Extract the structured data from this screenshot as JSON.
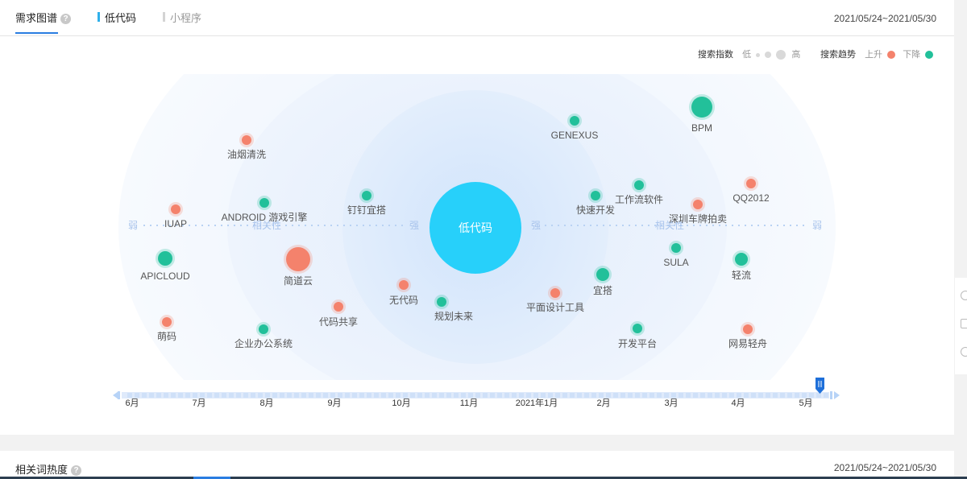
{
  "tabs": {
    "main": "需求图谱",
    "help": "?",
    "sub1": "低代码",
    "sub2": "小程序"
  },
  "date_range": "2021/05/24~2021/05/30",
  "legend": {
    "index_label": "搜索指数",
    "low": "低",
    "high": "高",
    "trend_label": "搜索趋势",
    "up": "上升",
    "down": "下降",
    "up_color": "#f4826c",
    "down_color": "#22c09a"
  },
  "graph": {
    "center": "低代码",
    "center_color": "#27d0fa",
    "axis_labels": {
      "weak": "弱",
      "strong": "强",
      "relevance": "相关性"
    },
    "terms": [
      {
        "label": "油烟清洗",
        "trend": "up"
      },
      {
        "label": "ANDROID 游戏引擎",
        "trend": "down"
      },
      {
        "label": "IUAP",
        "trend": "up"
      },
      {
        "label": "钉钉宜搭",
        "trend": "down"
      },
      {
        "label": "APICLOUD",
        "trend": "down"
      },
      {
        "label": "简道云",
        "trend": "up"
      },
      {
        "label": "无代码",
        "trend": "up"
      },
      {
        "label": "规划未来",
        "trend": "down"
      },
      {
        "label": "代码共享",
        "trend": "up"
      },
      {
        "label": "萌码",
        "trend": "up"
      },
      {
        "label": "企业办公系统",
        "trend": "down"
      },
      {
        "label": "GENEXUS",
        "trend": "down"
      },
      {
        "label": "BPM",
        "trend": "down"
      },
      {
        "label": "快速开发",
        "trend": "down"
      },
      {
        "label": "工作流软件",
        "trend": "down"
      },
      {
        "label": "QQ2012",
        "trend": "up"
      },
      {
        "label": "深圳车牌拍卖",
        "trend": "up"
      },
      {
        "label": "SULA",
        "trend": "down"
      },
      {
        "label": "轻流",
        "trend": "down"
      },
      {
        "label": "宜搭",
        "trend": "down"
      },
      {
        "label": "平面设计工具",
        "trend": "up"
      },
      {
        "label": "开发平台",
        "trend": "down"
      },
      {
        "label": "网易轻舟",
        "trend": "up"
      }
    ]
  },
  "timeline": {
    "labels": [
      "6月",
      "7月",
      "8月",
      "9月",
      "10月",
      "11月",
      "2021年1月",
      "2月",
      "3月",
      "4月",
      "5月"
    ]
  },
  "section2": {
    "title": "相关词热度",
    "date_range": "2021/05/24~2021/05/30"
  }
}
